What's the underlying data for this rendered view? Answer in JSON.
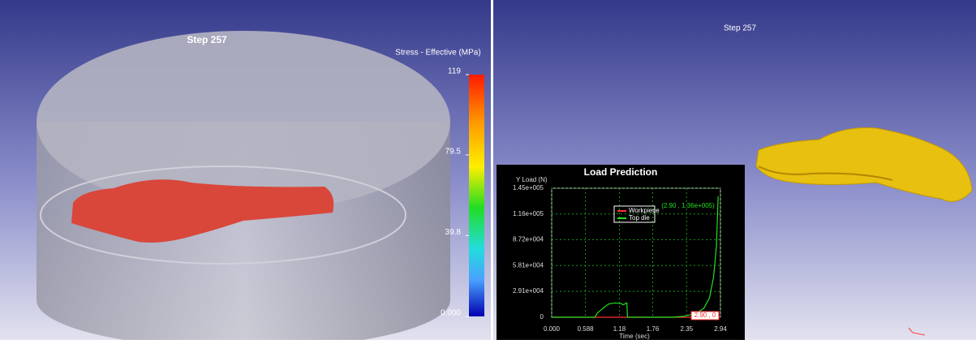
{
  "left_view": {
    "step_label": "Step  257",
    "colorbar": {
      "title": "Stress - Effective (MPa)",
      "lim": [
        0,
        119
      ],
      "ticks": [
        {
          "value": 119,
          "label": "119"
        },
        {
          "value": 79.5,
          "label": "79.5"
        },
        {
          "value": 39.8,
          "label": "39.8"
        },
        {
          "value": 0,
          "label": "0.000"
        }
      ]
    }
  },
  "right_view": {
    "step_label": "Step  257"
  },
  "chart_data": {
    "type": "line",
    "title": "Load Prediction",
    "y_label": "Y Load (N)",
    "x_label": "Time (sec)",
    "xlim": [
      0,
      2.94
    ],
    "ylim": [
      0,
      145000
    ],
    "xticks": [
      {
        "value": 0,
        "label": "0.000"
      },
      {
        "value": 0.588,
        "label": "0.588"
      },
      1.18,
      1.76,
      2.35,
      2.94
    ],
    "yticks": [
      {
        "value": 145000,
        "label": "1.45e+005"
      },
      {
        "value": 116000,
        "label": "1.16e+005"
      },
      {
        "value": 87200,
        "label": "8.72e+004"
      },
      {
        "value": 58100,
        "label": "5.81e+004"
      },
      {
        "value": 29100,
        "label": "2.91e+004"
      },
      0
    ],
    "grid": true,
    "series": [
      {
        "name": "Workpiece",
        "color": "#ff3030",
        "x": [
          0,
          2.1,
          2.94
        ],
        "values": [
          0,
          0,
          0
        ]
      },
      {
        "name": "Top die",
        "color": "#22e022",
        "x": [
          0,
          0.75,
          0.8,
          0.95,
          1.0,
          1.1,
          1.2,
          1.25,
          1.3,
          1.31,
          1.32,
          2.1,
          2.3,
          2.5,
          2.65,
          2.75,
          2.82,
          2.87,
          2.9
        ],
        "values": [
          0,
          0,
          5000,
          13000,
          15000,
          16000,
          15500,
          14000,
          16000,
          16000,
          0,
          0,
          1000,
          4000,
          10000,
          22000,
          45000,
          80000,
          136000
        ]
      }
    ],
    "annotations": [
      "(2.90 , 1.36e+005)",
      "2.90 , 0"
    ]
  }
}
